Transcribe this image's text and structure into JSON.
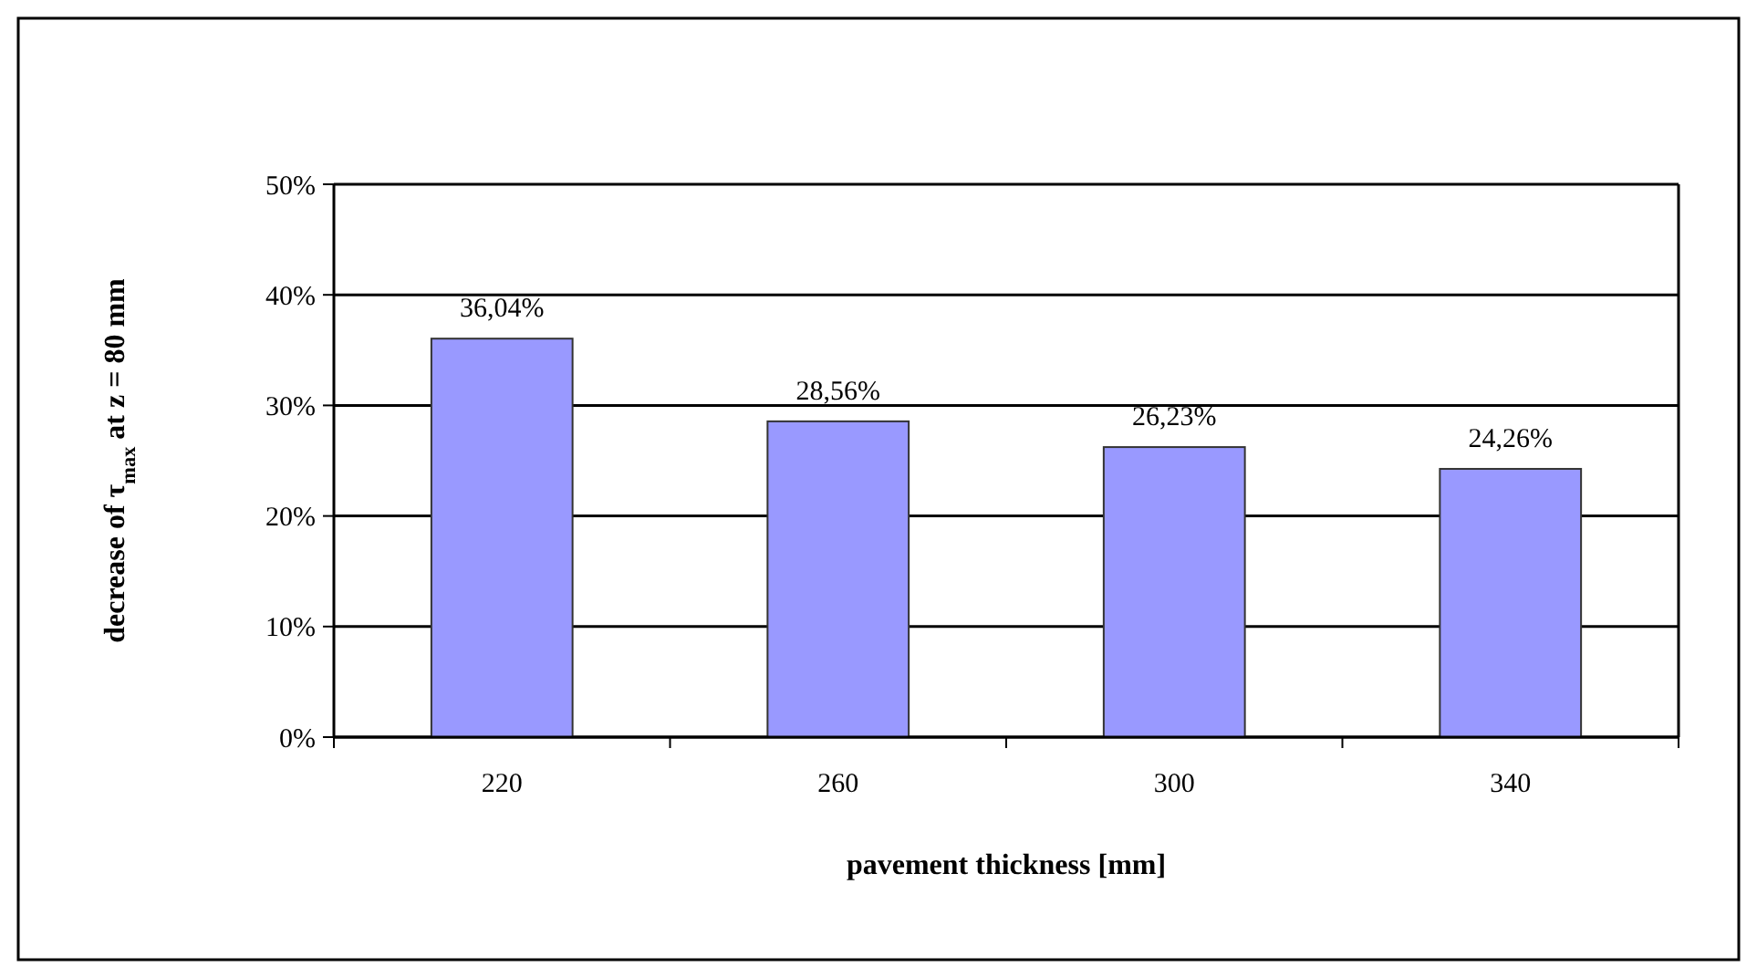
{
  "chart_data": {
    "type": "bar",
    "xlabel": "pavement thickness [mm]",
    "ylabel": "decrease of τ$_{max}$ at z = 80 mm",
    "categories": [
      "220",
      "260",
      "300",
      "340"
    ],
    "values": [
      36.04,
      28.56,
      26.23,
      24.26
    ],
    "value_labels": [
      "36,04%",
      "28,56%",
      "26,23%",
      "24,26%"
    ],
    "color": "#9999ff",
    "ylim": [
      0,
      50
    ],
    "yticks": [
      {
        "value": 0,
        "label": "0%"
      },
      {
        "value": 10,
        "label": "10%"
      },
      {
        "value": 20,
        "label": "20%"
      },
      {
        "value": 30,
        "label": "30%"
      },
      {
        "value": 40,
        "label": "40%"
      },
      {
        "value": 50,
        "label": "50%"
      }
    ],
    "grid": "y"
  }
}
